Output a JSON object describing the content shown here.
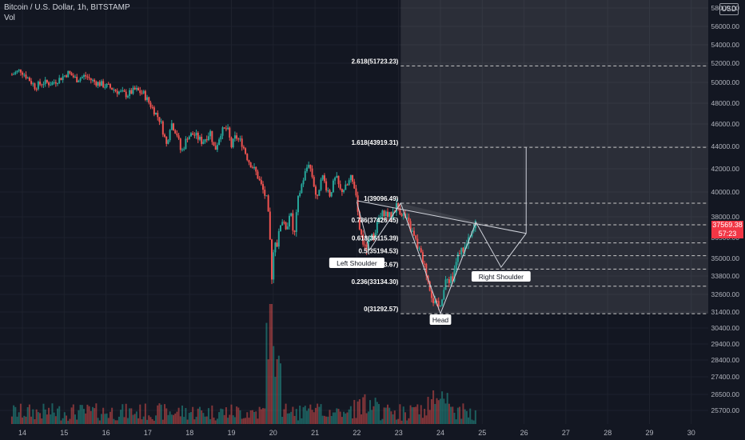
{
  "header": {
    "symbol_line": "Bitcoin / U.S. Dollar, 1h, BITSTAMP",
    "volume_label": "Vol"
  },
  "currency_button": "USD",
  "last_price": {
    "value": "37569.38",
    "countdown": "57:23"
  },
  "chart_data": {
    "type": "candlestick",
    "price_axis_labels": [
      "58000.00",
      "56000.00",
      "54000.00",
      "52000.00",
      "50000.00",
      "48000.00",
      "46000.00",
      "44000.00",
      "42000.00",
      "40000.00",
      "38000.00",
      "36500.00",
      "35000.00",
      "33800.00",
      "32600.00",
      "31400.00",
      "30400.00",
      "29400.00",
      "28400.00",
      "27400.00",
      "26500.00",
      "25700.00"
    ],
    "time_axis_labels": [
      "14",
      "15",
      "16",
      "17",
      "18",
      "19",
      "20",
      "21",
      "22",
      "23",
      "24",
      "25",
      "26",
      "27",
      "28",
      "29",
      "30"
    ],
    "price_path": [
      [
        13.75,
        50800
      ],
      [
        13.95,
        51300
      ],
      [
        14.1,
        50600
      ],
      [
        14.3,
        49600
      ],
      [
        14.5,
        50000
      ],
      [
        14.7,
        49900
      ],
      [
        14.9,
        50400
      ],
      [
        15.1,
        51000
      ],
      [
        15.3,
        50300
      ],
      [
        15.5,
        50700
      ],
      [
        15.7,
        50100
      ],
      [
        15.9,
        49800
      ],
      [
        16.1,
        49500
      ],
      [
        16.3,
        49100
      ],
      [
        16.5,
        48800
      ],
      [
        16.7,
        49300
      ],
      [
        16.9,
        48900
      ],
      [
        17.1,
        47600
      ],
      [
        17.3,
        46300
      ],
      [
        17.45,
        44100
      ],
      [
        17.55,
        46200
      ],
      [
        17.7,
        45100
      ],
      [
        17.8,
        43400
      ],
      [
        17.95,
        44900
      ],
      [
        18.1,
        45100
      ],
      [
        18.3,
        44400
      ],
      [
        18.5,
        45300
      ],
      [
        18.6,
        43600
      ],
      [
        18.75,
        45300
      ],
      [
        18.9,
        45600
      ],
      [
        19.0,
        44000
      ],
      [
        19.1,
        44900
      ],
      [
        19.25,
        44300
      ],
      [
        19.4,
        42800
      ],
      [
        19.6,
        41600
      ],
      [
        19.75,
        40200
      ],
      [
        19.85,
        39300
      ],
      [
        19.9,
        37400
      ],
      [
        19.95,
        35000
      ],
      [
        19.98,
        32800
      ],
      [
        20.02,
        36600
      ],
      [
        20.1,
        36000
      ],
      [
        20.2,
        38000
      ],
      [
        20.3,
        36800
      ],
      [
        20.4,
        38600
      ],
      [
        20.5,
        36400
      ],
      [
        20.6,
        39500
      ],
      [
        20.7,
        40900
      ],
      [
        20.85,
        42600
      ],
      [
        20.95,
        41100
      ],
      [
        21.05,
        39200
      ],
      [
        21.15,
        41600
      ],
      [
        21.25,
        40600
      ],
      [
        21.35,
        39800
      ],
      [
        21.5,
        41300
      ],
      [
        21.6,
        40100
      ],
      [
        21.75,
        40400
      ],
      [
        21.85,
        41200
      ],
      [
        21.95,
        40400
      ],
      [
        22.05,
        37300
      ],
      [
        22.2,
        35600
      ],
      [
        22.35,
        36400
      ],
      [
        22.5,
        37600
      ],
      [
        22.65,
        38400
      ],
      [
        22.8,
        38000
      ],
      [
        22.95,
        38900
      ],
      [
        23.1,
        38200
      ],
      [
        23.25,
        37400
      ],
      [
        23.4,
        36300
      ],
      [
        23.55,
        35100
      ],
      [
        23.7,
        33600
      ],
      [
        23.85,
        32000
      ],
      [
        23.95,
        31700
      ],
      [
        24.05,
        32600
      ],
      [
        24.15,
        33500
      ],
      [
        24.3,
        33800
      ],
      [
        24.45,
        35500
      ],
      [
        24.6,
        35800
      ],
      [
        24.75,
        36700
      ],
      [
        24.85,
        37570
      ]
    ],
    "fibonacci": [
      {
        "label": "0(31292.57)",
        "price": 31292.57
      },
      {
        "label": "0.236(33134.30)",
        "price": 33134.3
      },
      {
        "label": "0.382(34273.67)",
        "price": 34273.67
      },
      {
        "label": "0.5(35194.53)",
        "price": 35194.53
      },
      {
        "label": "0.618(36115.39)",
        "price": 36115.39
      },
      {
        "label": "0.786(37426.45)",
        "price": 37426.45
      },
      {
        "label": "1(39096.49)",
        "price": 39096.49
      },
      {
        "label": "1.618(43919.31)",
        "price": 43919.31
      },
      {
        "label": "2.618(51723.23)",
        "price": 51723.23
      }
    ],
    "pattern": {
      "labels": {
        "left_shoulder": "Left Shoulder",
        "head": "Head",
        "right_shoulder": "Right Shoulder"
      },
      "points": [
        [
          22,
          39200
        ],
        [
          22.3,
          35600
        ],
        [
          23.05,
          39100
        ],
        [
          24.0,
          31300
        ],
        [
          24.85,
          37600
        ],
        [
          25.45,
          34400
        ],
        [
          26.05,
          36800
        ]
      ],
      "neckline": [
        [
          22,
          39300
        ],
        [
          26.05,
          36800
        ]
      ],
      "target": [
        [
          26.05,
          36800
        ],
        [
          26.05,
          43919.31
        ]
      ]
    }
  }
}
